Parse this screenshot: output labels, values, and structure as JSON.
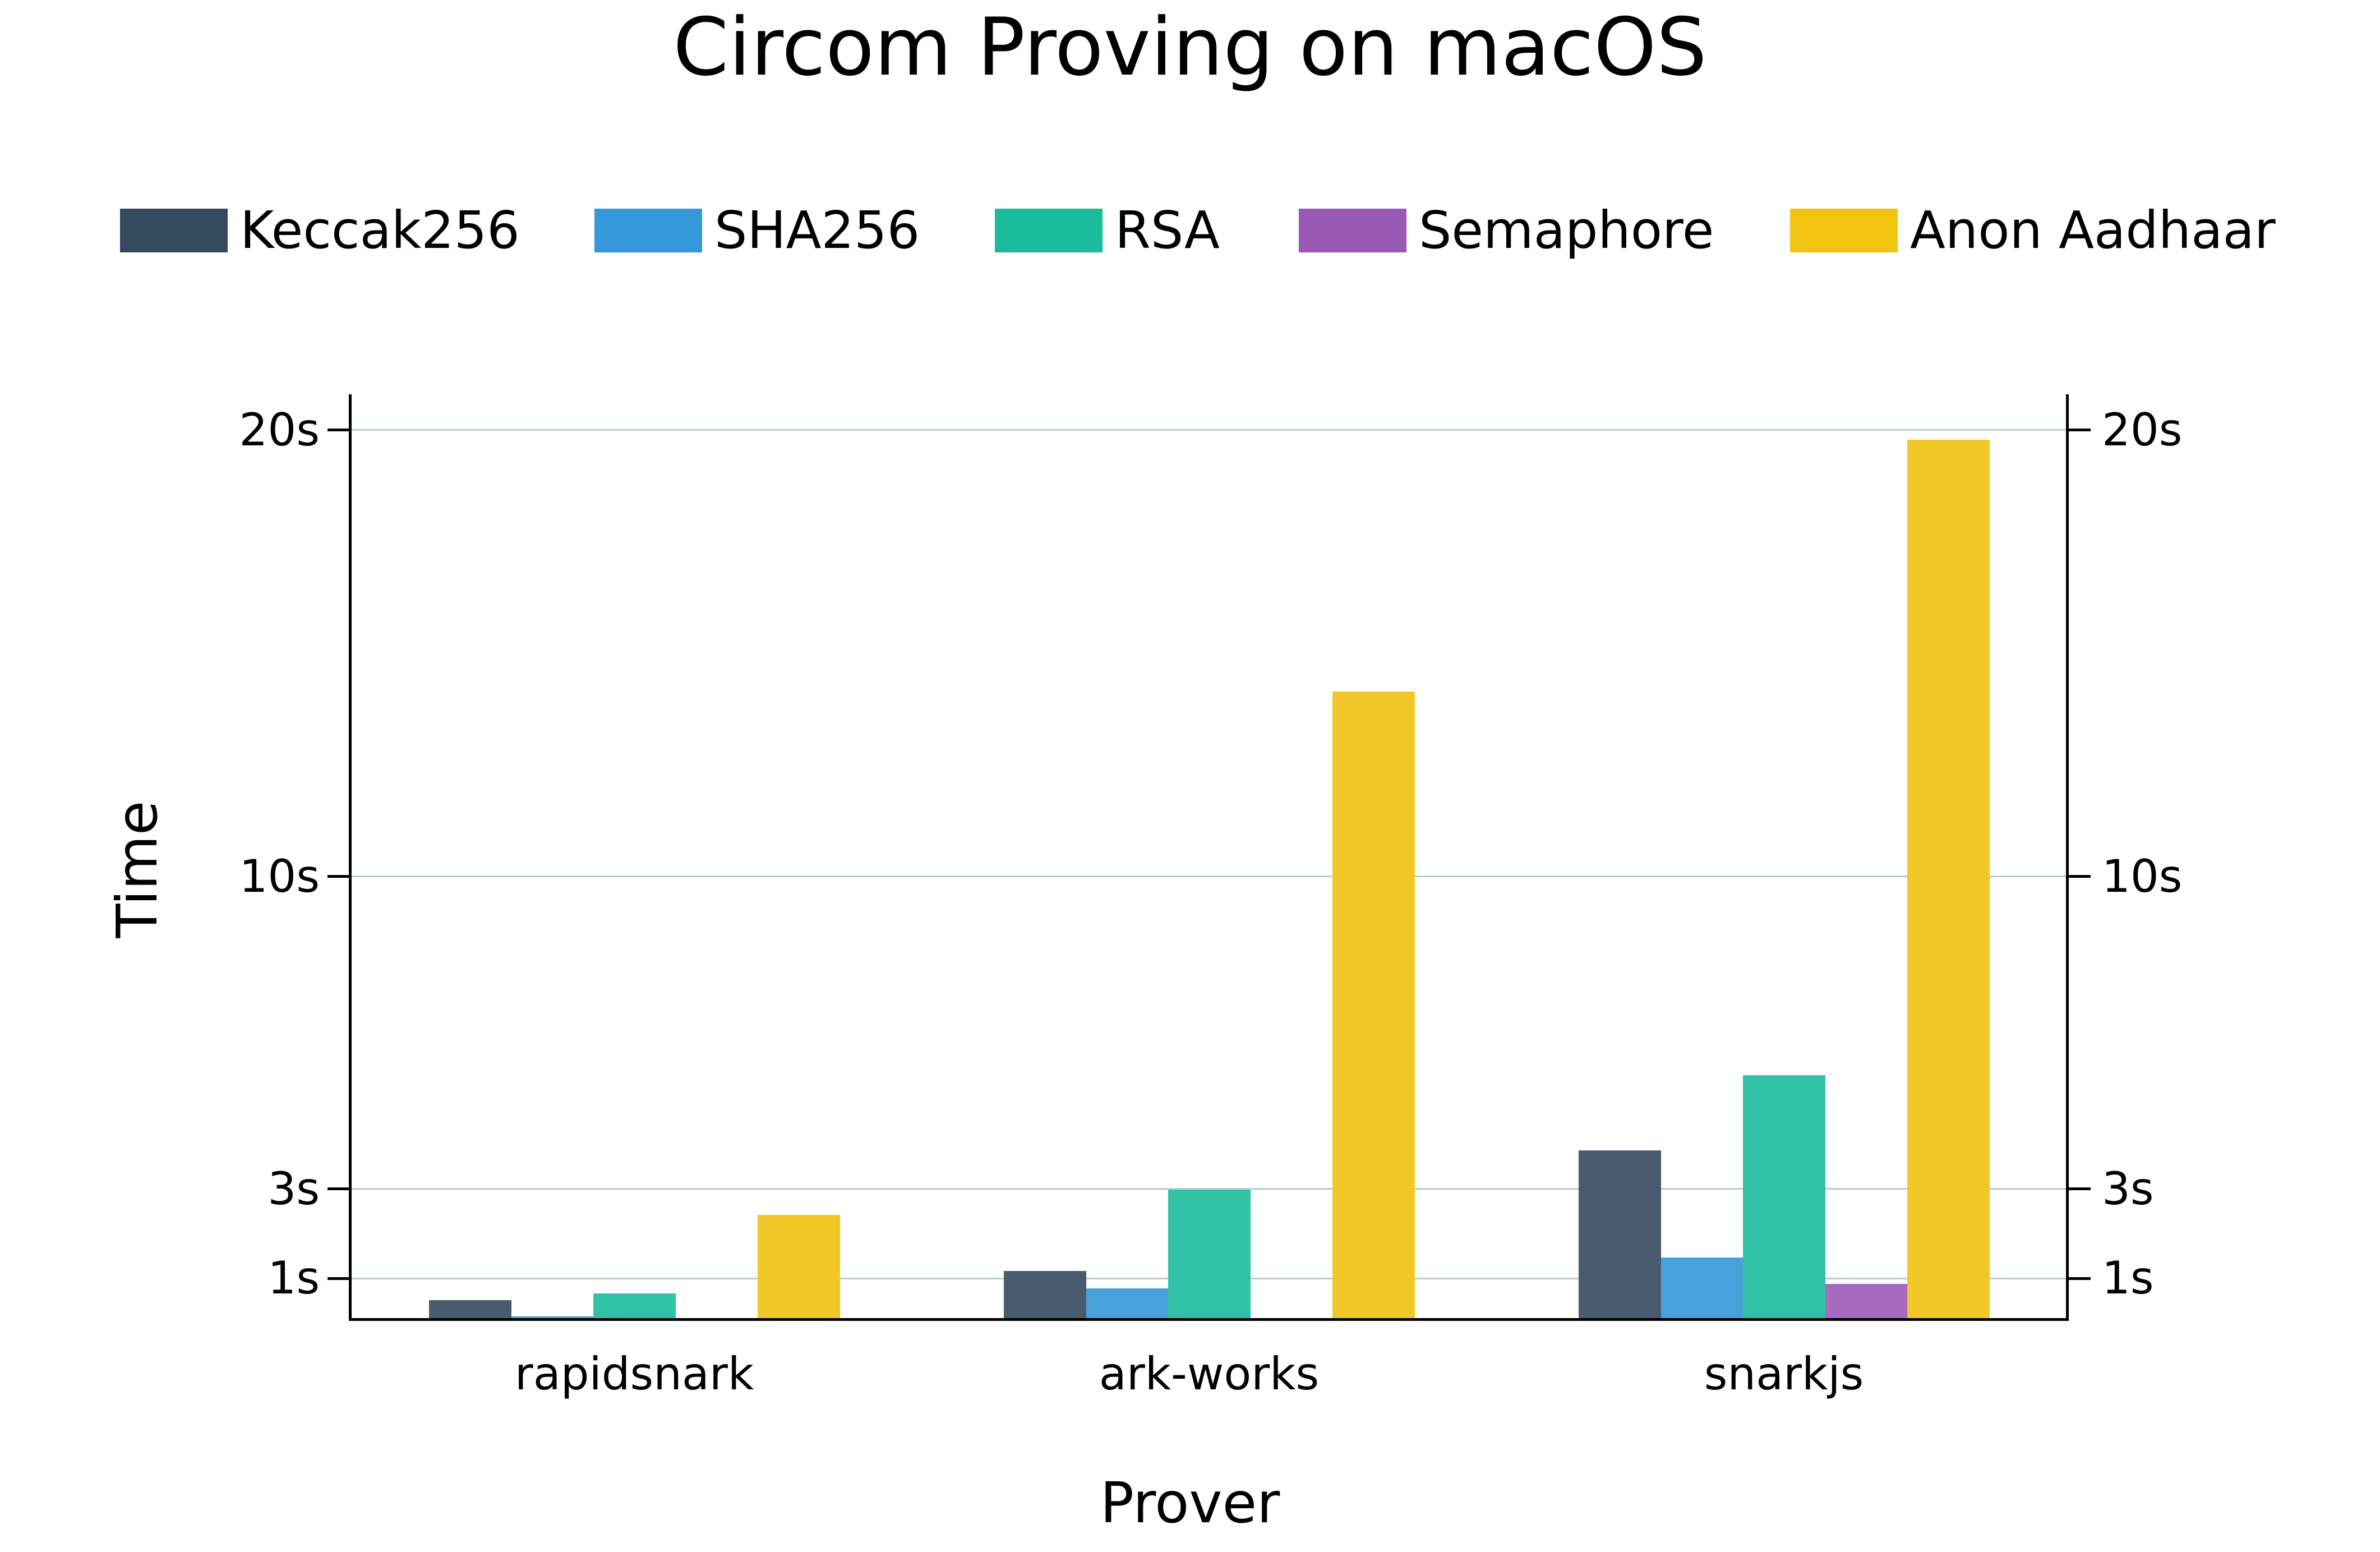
{
  "chart_data": {
    "type": "bar",
    "title": "Circom Proving on macOS",
    "xlabel": "Prover",
    "ylabel": "Time",
    "categories": [
      "rapidsnark",
      "ark-works",
      "snarkjs"
    ],
    "series": [
      {
        "name": "Keccak256",
        "color": "#34495e",
        "bar_color": "#4a5b6f",
        "values": [
          0.51,
          1.16,
          3.86
        ]
      },
      {
        "name": "SHA256",
        "color": "#3498db",
        "bar_color": "#49a1dc",
        "values": [
          0.15,
          0.77,
          1.46
        ]
      },
      {
        "name": "RSA",
        "color": "#1abc9c",
        "bar_color": "#32c2a5",
        "values": [
          0.66,
          2.98,
          5.55
        ]
      },
      {
        "name": "Semaphore",
        "color": "#9b59b6",
        "bar_color": "#a66bbe",
        "values": [
          0.09,
          null,
          0.87
        ]
      },
      {
        "name": "Anon Aadhaar",
        "color": "#f1c40f",
        "bar_color": "#f1c827",
        "values": [
          2.42,
          14.14,
          19.78
        ]
      }
    ],
    "yticks": [
      1,
      3,
      10,
      20
    ],
    "ytick_labels": [
      "1s",
      "3s",
      "10s",
      "20s"
    ],
    "ylim": [
      0.08,
      20.8
    ],
    "grid": true,
    "grid_color": "#b5d0cd",
    "legend_position": "top",
    "mirror_y_axis": true
  }
}
